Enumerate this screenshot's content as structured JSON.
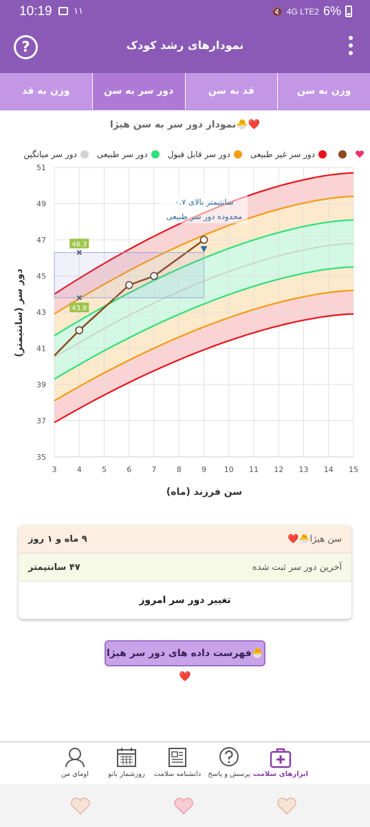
{
  "status_bar": {
    "time": "10:19",
    "small_text": "۱۱",
    "signal_text": "4G  LTE2",
    "battery": "6%"
  },
  "header": {
    "title": "نمودارهای رشد کودک"
  },
  "tabs": [
    {
      "label": "وزن به سن",
      "active": false
    },
    {
      "label": "قد به سن",
      "active": false
    },
    {
      "label": "دور سر به سن",
      "active": true
    },
    {
      "label": "وزن به قد",
      "active": false
    }
  ],
  "chart": {
    "title": "نمودار دور سر به سن هیژا🐣❤️",
    "legend": [
      {
        "label": "",
        "color": "#e8356b",
        "icon": "heart"
      },
      {
        "label": "",
        "color": "#8b4a1d"
      },
      {
        "label": "دور سر غیر طبیعی",
        "color": "#e8131b"
      },
      {
        "label": "دور سر قابل قبول",
        "color": "#f39c12"
      },
      {
        "label": "دور سر طبیعی",
        "color": "#2ee07a"
      },
      {
        "label": "دور سر میانگین",
        "color": "#d3d3d3"
      }
    ],
    "annotation_line1": "۰.۷ سانتیمتر بالای",
    "annotation_line2": "محدوده دور سر طبیعی",
    "marker_top": "46.3",
    "marker_bottom": "43.8"
  },
  "chart_data": {
    "type": "line",
    "xlabel": "سن فرزند (ماه)",
    "ylabel": "دور سر (سانتیمتر)",
    "xlim": [
      3,
      15
    ],
    "ylim": [
      35,
      51
    ],
    "x_ticks": [
      3,
      4,
      5,
      6,
      7,
      8,
      9,
      10,
      11,
      12,
      13,
      14,
      15
    ],
    "y_ticks": [
      35,
      37,
      39,
      41,
      43,
      45,
      47,
      49,
      51
    ],
    "reference_x": [
      3,
      15
    ],
    "reference_curves": [
      {
        "name": "دور سر غیر طبیعی",
        "band": "upper",
        "y": [
          44.0,
          50.7
        ]
      },
      {
        "name": "دور سر قابل قبول",
        "band": "upper",
        "y": [
          42.9,
          49.4
        ]
      },
      {
        "name": "دور سر طبیعی",
        "band": "upper",
        "y": [
          41.7,
          48.1
        ]
      },
      {
        "name": "دور سر میانگین",
        "y": [
          40.5,
          46.8
        ]
      },
      {
        "name": "دور سر طبیعی",
        "band": "lower",
        "y": [
          39.3,
          45.5
        ]
      },
      {
        "name": "دور سر قابل قبول",
        "band": "lower",
        "y": [
          38.1,
          44.2
        ]
      },
      {
        "name": "دور سر غیر طبیعی",
        "band": "lower",
        "y": [
          36.9,
          42.9
        ]
      }
    ],
    "series": [
      {
        "x": [
          3,
          4,
          6,
          7,
          9
        ],
        "y": [
          40.6,
          42.0,
          44.5,
          45.0,
          47.0
        ]
      }
    ],
    "markers": [
      {
        "x": 4,
        "y": 46.3
      },
      {
        "x": 4,
        "y": 43.8
      },
      {
        "x": 9,
        "y": 46.5
      }
    ]
  },
  "info": {
    "age_label": "سن هیژا🐣❤️",
    "age_value": "۹ ماه و ۱ روز",
    "last_label": "آخرین دور سر ثبت شده",
    "last_value": "۴۷ سانتیمتر",
    "action": "تغییر دور سر امروز"
  },
  "list_button": "فهرست داده های دور سر هیژا🐣❤️",
  "bottom_nav": [
    {
      "label": "ابزارهای سلامت",
      "icon": "medical-kit-icon",
      "active": true
    },
    {
      "label": "پرسش و پاسخ",
      "icon": "question-bubble-icon",
      "active": false
    },
    {
      "label": "دانشنامه سلامت",
      "icon": "newspaper-icon",
      "active": false
    },
    {
      "label": "روزشمار بانو",
      "icon": "calendar-icon",
      "active": false
    },
    {
      "label": "اومای من",
      "icon": "avatar-icon",
      "active": false
    }
  ],
  "colors": {
    "primary": "#8a5ab6",
    "tab": "#c397e6",
    "red": "#e8131b",
    "orange": "#f39c12",
    "green": "#2ee07a",
    "mean": "#c9d6cc",
    "series": "#8b4a1d"
  }
}
